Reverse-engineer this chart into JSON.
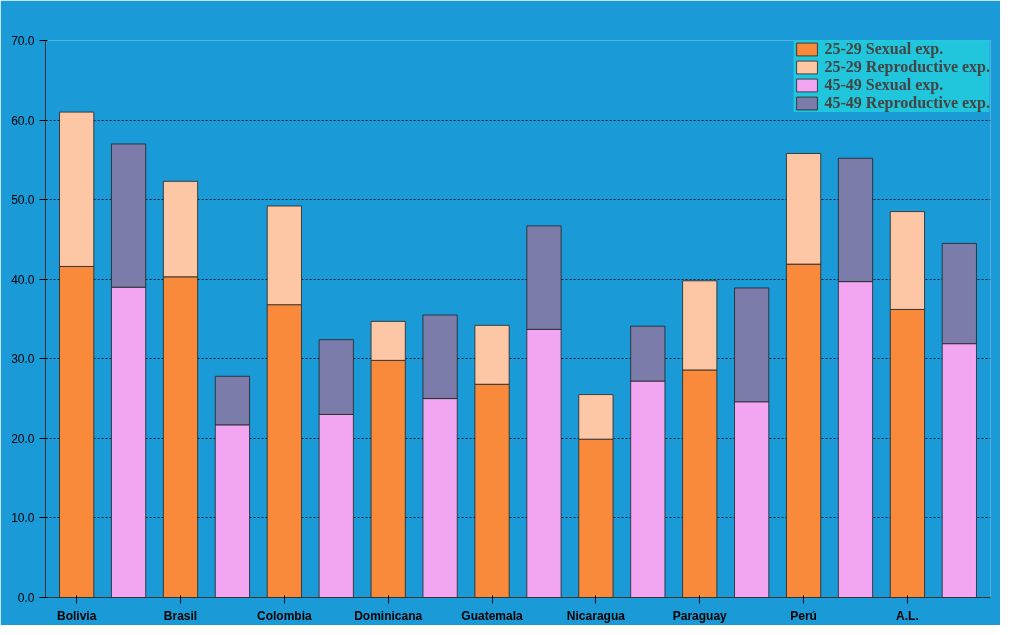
{
  "chart_data": {
    "type": "bar",
    "stacked": true,
    "categories": [
      "Bolivia",
      null,
      "Brasil",
      null,
      "Colombia",
      null,
      "Dominicana",
      null,
      "Guatemala",
      null,
      "Nicaragua",
      null,
      "Paraguay",
      null,
      "Perú",
      null,
      "A.L.",
      null
    ],
    "series": [
      {
        "name": "25-29 Sexual exp.",
        "color": "#f98a3c",
        "values": [
          41.6,
          null,
          40.3,
          null,
          36.8,
          null,
          29.8,
          null,
          26.8,
          null,
          19.9,
          null,
          28.6,
          null,
          41.9,
          null,
          36.2,
          null
        ]
      },
      {
        "name": "25-29 Reproductive exp.",
        "color": "#fdc6a4",
        "values": [
          19.4,
          null,
          12.0,
          null,
          12.4,
          null,
          4.9,
          null,
          7.4,
          null,
          5.6,
          null,
          11.2,
          null,
          13.9,
          null,
          12.3,
          null
        ]
      },
      {
        "name": "45-49 Sexual exp.",
        "color": "#f2a6f2",
        "values": [
          null,
          39.0,
          null,
          21.7,
          null,
          23.0,
          null,
          25.0,
          null,
          33.7,
          null,
          27.2,
          null,
          24.6,
          null,
          39.7,
          null,
          31.9
        ]
      },
      {
        "name": "45-49 Reproductive exp.",
        "color": "#7c7caa",
        "values": [
          null,
          18.0,
          null,
          6.1,
          null,
          9.4,
          null,
          10.5,
          null,
          13.0,
          null,
          6.9,
          null,
          14.3,
          null,
          15.5,
          null,
          12.6
        ]
      }
    ],
    "ylim": [
      0,
      70
    ],
    "yticks": [
      {
        "value": 0,
        "label": "0.0"
      },
      {
        "value": 10,
        "label": "10.0"
      },
      {
        "value": 20,
        "label": "20.0"
      },
      {
        "value": 30,
        "label": "30.0"
      },
      {
        "value": 40,
        "label": "40.0"
      },
      {
        "value": 50,
        "label": "50.0"
      },
      {
        "value": 60,
        "label": "60.0"
      },
      {
        "value": 70,
        "label": "70.0"
      }
    ],
    "grid": "y",
    "legend": "top right"
  }
}
